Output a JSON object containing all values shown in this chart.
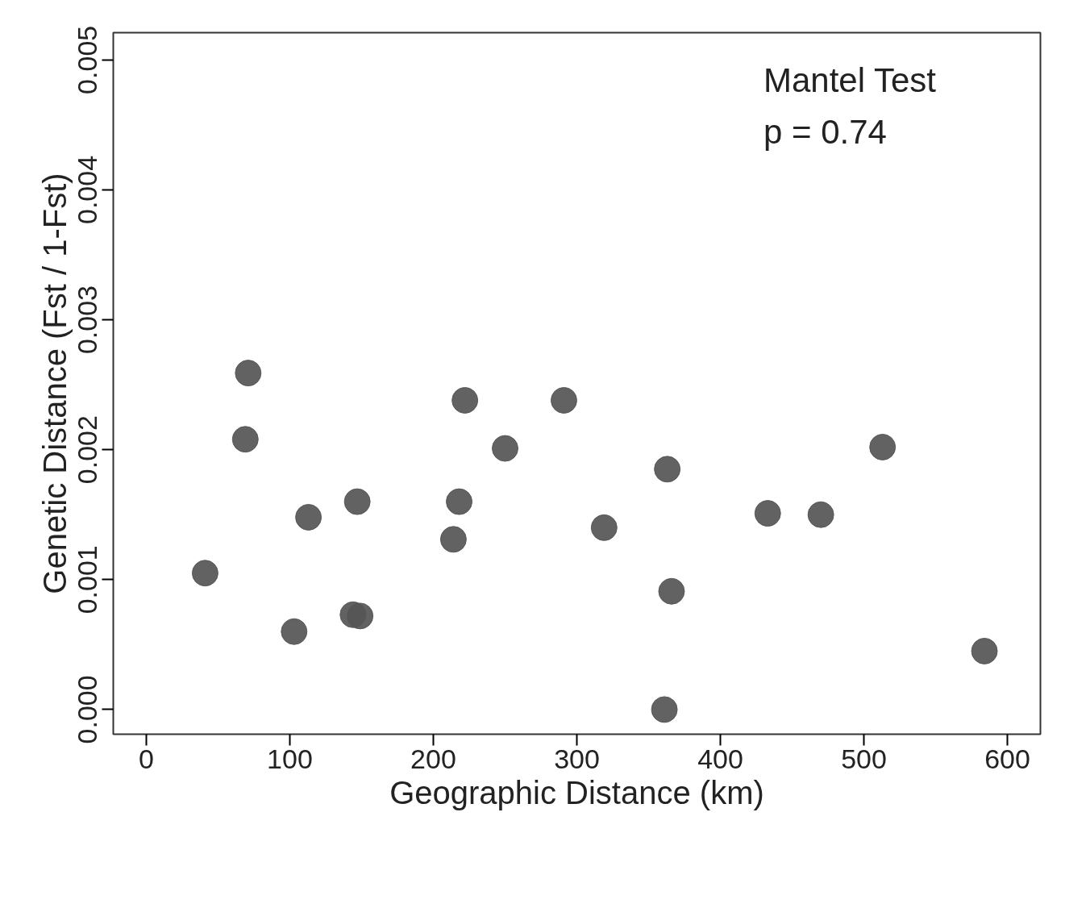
{
  "chart_data": {
    "type": "scatter",
    "xlabel": "Geographic Distance (km)",
    "ylabel": "Genetic Distance (Fst / 1-Fst)",
    "annotations": [
      "Mantel Test",
      "p = 0.74"
    ],
    "x": [
      41,
      69,
      71,
      103,
      113,
      147,
      144,
      149,
      214,
      218,
      222,
      250,
      291,
      319,
      363,
      361,
      366,
      433,
      470,
      513,
      584
    ],
    "series": [
      {
        "color": "#555555",
        "values": [
          0.00105,
          0.00208,
          0.00259,
          0.0006,
          0.00148,
          0.0016,
          0.00073,
          0.00072,
          0.00131,
          0.0016,
          0.00238,
          0.00201,
          0.00238,
          0.0014,
          0.00185,
          0.0,
          0.00091,
          0.00151,
          0.0015,
          0.00202,
          0.00045
        ]
      }
    ],
    "xlim": [
      -23,
      623
    ],
    "ylim": [
      -0.00019,
      0.00521
    ],
    "xticks": [
      0,
      100,
      200,
      300,
      400,
      500,
      600
    ],
    "yticks": [
      {
        "value": 0,
        "label": "0.000"
      },
      {
        "value": 0.001,
        "label": "0.001"
      },
      {
        "value": 0.002,
        "label": "0.002"
      },
      {
        "value": 0.003,
        "label": "0.003"
      },
      {
        "value": 0.004,
        "label": "0.004"
      },
      {
        "value": 0.005,
        "label": "0.005"
      }
    ],
    "grid": false,
    "marker": "circle"
  }
}
